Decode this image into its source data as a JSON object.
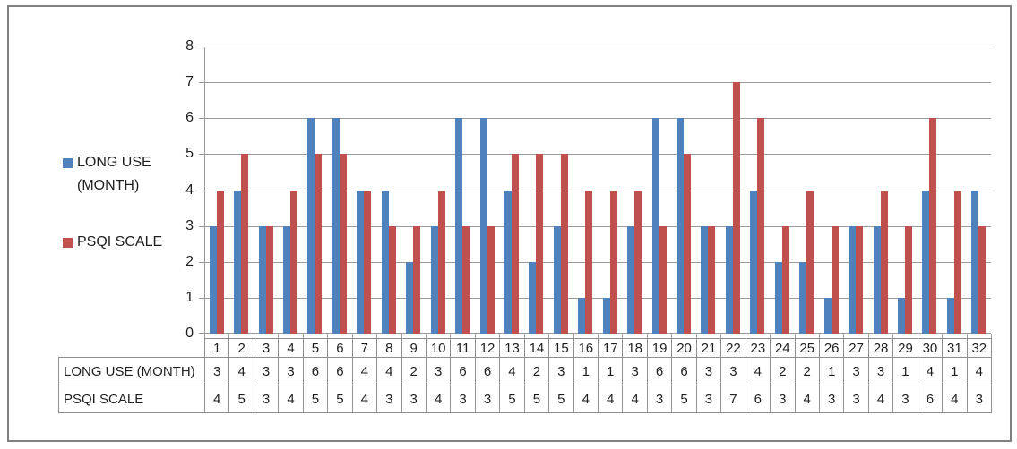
{
  "chart": {
    "background": "#ffffff",
    "frame_border_color": "#808080",
    "grid_color": "#9b9b9b",
    "table_border_color": "#8f8f8f",
    "text_color": "#1f1f1f"
  },
  "legend": {
    "position": "left",
    "items": [
      {
        "label": "LONG USE (MONTH)",
        "color": "#4F81BD"
      },
      {
        "label": "PSQI SCALE",
        "color": "#C0504D"
      }
    ]
  },
  "chart_data": {
    "type": "bar",
    "title": "",
    "xlabel": "",
    "ylabel": "",
    "ylim": [
      0,
      8
    ],
    "ytick_step": 1,
    "yticks": [
      "0",
      "1",
      "2",
      "3",
      "4",
      "5",
      "6",
      "7",
      "8"
    ],
    "grid": true,
    "legend_position": "left",
    "has_data_table": true,
    "categories": [
      "1",
      "2",
      "3",
      "4",
      "5",
      "6",
      "7",
      "8",
      "9",
      "10",
      "11",
      "12",
      "13",
      "14",
      "15",
      "16",
      "17",
      "18",
      "19",
      "20",
      "21",
      "22",
      "23",
      "24",
      "25",
      "26",
      "27",
      "28",
      "29",
      "30",
      "31",
      "32"
    ],
    "series": [
      {
        "name": "LONG USE (MONTH)",
        "color": "#4F81BD",
        "values": [
          3,
          4,
          3,
          3,
          6,
          6,
          4,
          4,
          2,
          3,
          6,
          6,
          4,
          2,
          3,
          1,
          1,
          3,
          6,
          6,
          3,
          3,
          4,
          2,
          2,
          1,
          3,
          3,
          1,
          4,
          1,
          4
        ]
      },
      {
        "name": "PSQI SCALE",
        "color": "#C0504D",
        "values": [
          4,
          5,
          3,
          4,
          5,
          5,
          4,
          3,
          3,
          4,
          3,
          3,
          5,
          5,
          5,
          4,
          4,
          4,
          3,
          5,
          3,
          7,
          6,
          3,
          4,
          3,
          3,
          4,
          3,
          6,
          4,
          3
        ]
      }
    ]
  }
}
